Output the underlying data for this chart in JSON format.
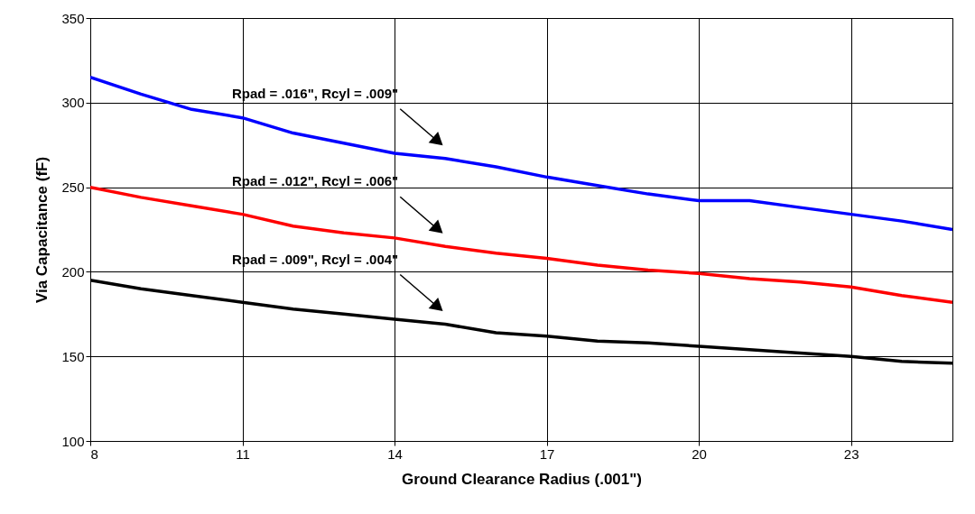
{
  "chart_data": {
    "type": "line",
    "xlabel": "Ground Clearance Radius (.001\")",
    "ylabel": "Via Capacitance (fF)",
    "x": [
      8,
      9,
      10,
      11,
      12,
      13,
      14,
      15,
      16,
      17,
      18,
      19,
      20,
      21,
      22,
      23,
      24,
      25
    ],
    "series": [
      {
        "color": "#0000ff",
        "values": [
          315,
          305,
          296,
          291,
          282,
          276,
          270,
          267,
          262,
          256,
          251,
          246,
          242,
          242,
          238,
          234,
          230,
          225
        ]
      },
      {
        "color": "#ff0000",
        "values": [
          250,
          244,
          239,
          234,
          227,
          223,
          220,
          215,
          211,
          208,
          204,
          201,
          199,
          196,
          194,
          191,
          186,
          182
        ]
      },
      {
        "color": "#000000",
        "values": [
          195,
          190,
          186,
          182,
          178,
          175,
          172,
          169,
          164,
          162,
          159,
          158,
          156,
          154,
          152,
          150,
          147,
          146
        ]
      }
    ],
    "xlim": [
      8,
      25
    ],
    "xticks": [
      8,
      11,
      14,
      17,
      20,
      23
    ],
    "ylim": [
      100,
      350
    ],
    "yticks": [
      100,
      150,
      200,
      250,
      300,
      350
    ],
    "grid": true,
    "marker": "none",
    "line_style": "solid",
    "annotations": [
      "Rpad = .016\", Rcyl = .009\"",
      "Rpad = .012\", Rcyl = .006\"",
      "Rpad = .009\", Rcyl = .004\""
    ]
  }
}
